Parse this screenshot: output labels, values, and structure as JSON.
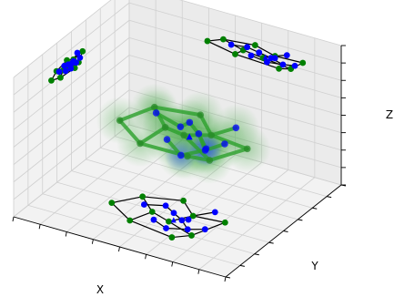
{
  "chart_data": {
    "type": "scatter",
    "title": "",
    "projection": "3d",
    "grid": true,
    "xlabel": "X",
    "ylabel": "Y",
    "zlabel": "Z",
    "xlim": [
      -1,
      1
    ],
    "ylim": [
      -1,
      1
    ],
    "zlim": [
      -1,
      1
    ],
    "series": [
      {
        "kind": "graph",
        "colors": {
          "node_a": "#0000ff",
          "node_b": "#008000",
          "edge": "#000000",
          "glow": "#2ca02c"
        },
        "nodes": [
          {
            "id": 0,
            "x": -0.1,
            "y": -0.05,
            "z": 0.05,
            "type": "b"
          },
          {
            "id": 1,
            "x": 0.15,
            "y": -0.15,
            "z": 0.1,
            "type": "b"
          },
          {
            "id": 2,
            "x": 0.3,
            "y": 0.1,
            "z": 0.0,
            "type": "b"
          },
          {
            "id": 3,
            "x": -0.35,
            "y": 0.2,
            "z": 0.1,
            "type": "b"
          },
          {
            "id": 4,
            "x": -0.55,
            "y": -0.1,
            "z": 0.0,
            "type": "b"
          },
          {
            "id": 5,
            "x": 0.5,
            "y": -0.3,
            "z": -0.05,
            "type": "b"
          },
          {
            "id": 6,
            "x": 0.65,
            "y": 0.15,
            "z": -0.1,
            "type": "b"
          },
          {
            "id": 7,
            "x": 0.05,
            "y": 0.35,
            "z": 0.05,
            "type": "b"
          },
          {
            "id": 8,
            "x": -0.2,
            "y": -0.35,
            "z": -0.05,
            "type": "b"
          },
          {
            "id": 9,
            "x": 0.35,
            "y": -0.45,
            "z": 0.05,
            "type": "b"
          },
          {
            "id": 10,
            "x": 0.1,
            "y": 0.05,
            "z": 0.15,
            "type": "a"
          },
          {
            "id": 11,
            "x": 0.25,
            "y": -0.05,
            "z": 0.1,
            "type": "a"
          },
          {
            "id": 12,
            "x": -0.05,
            "y": 0.15,
            "z": -0.05,
            "type": "a"
          },
          {
            "id": 13,
            "x": 0.2,
            "y": -0.3,
            "z": -0.1,
            "type": "a"
          },
          {
            "id": 14,
            "x": 0.4,
            "y": -0.2,
            "z": 0.0,
            "type": "a"
          },
          {
            "id": 15,
            "x": 0.3,
            "y": 0.0,
            "z": -0.15,
            "type": "a"
          },
          {
            "id": 16,
            "x": -0.25,
            "y": 0.05,
            "z": 0.15,
            "type": "a"
          },
          {
            "id": 17,
            "x": 0.45,
            "y": 0.3,
            "z": 0.05,
            "type": "a"
          },
          {
            "id": 18,
            "x": 0.55,
            "y": -0.1,
            "z": 0.1,
            "type": "a"
          },
          {
            "id": 19,
            "x": 0.0,
            "y": -0.2,
            "z": 0.0,
            "type": "a"
          }
        ],
        "edges": [
          [
            4,
            3
          ],
          [
            3,
            7
          ],
          [
            7,
            2
          ],
          [
            2,
            6
          ],
          [
            6,
            5
          ],
          [
            5,
            9
          ],
          [
            9,
            8
          ],
          [
            8,
            4
          ],
          [
            0,
            1
          ],
          [
            1,
            2
          ],
          [
            0,
            3
          ],
          [
            1,
            5
          ],
          [
            0,
            8
          ],
          [
            2,
            17
          ],
          [
            10,
            11
          ],
          [
            11,
            14
          ],
          [
            10,
            12
          ],
          [
            12,
            16
          ],
          [
            19,
            13
          ],
          [
            13,
            14
          ],
          [
            15,
            11
          ],
          [
            18,
            14
          ]
        ],
        "direction_markers": [
          {
            "x": 0.18,
            "y": -0.1,
            "z": 0.05
          }
        ]
      }
    ]
  }
}
